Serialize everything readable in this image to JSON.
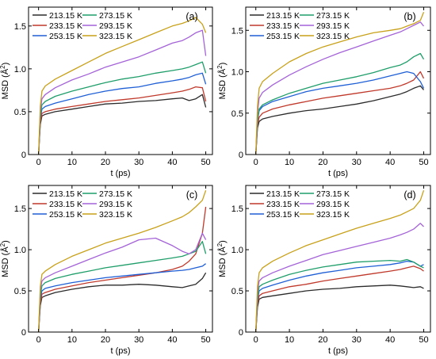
{
  "chart_data": [
    {
      "type": "line",
      "panel_label": "(a)",
      "xlabel": "t (ps)",
      "ylabel": "MSD (Å²)",
      "ylabel_text": "MSD (Å",
      "ylabel_sup": "2",
      "ylabel_close": ")",
      "xlim": [
        -3,
        52
      ],
      "ylim": [
        0,
        1.72
      ],
      "xticks": [
        0,
        10,
        20,
        30,
        40,
        50
      ],
      "xtick_labels": [
        "0",
        "10",
        "20",
        "30",
        "40",
        "50"
      ],
      "yticks": [
        0.0,
        0.5,
        1.0,
        1.5
      ],
      "ytick_labels": [
        "0",
        "0.5",
        "1.0",
        "1.5"
      ],
      "series": [
        {
          "name": "213.15 K",
          "color": "#2b2b2b",
          "x": [
            0,
            0.5,
            1,
            2,
            5,
            10,
            15,
            20,
            25,
            30,
            35,
            40,
            43,
            45,
            47,
            49,
            50
          ],
          "y": [
            0,
            0.35,
            0.45,
            0.47,
            0.5,
            0.53,
            0.56,
            0.59,
            0.6,
            0.62,
            0.63,
            0.65,
            0.66,
            0.63,
            0.65,
            0.7,
            0.55
          ]
        },
        {
          "name": "233.15 K",
          "color": "#c0392b",
          "x": [
            0,
            0.5,
            1,
            2,
            5,
            10,
            15,
            20,
            25,
            30,
            35,
            40,
            43,
            45,
            47,
            49,
            50
          ],
          "y": [
            0,
            0.38,
            0.48,
            0.5,
            0.53,
            0.56,
            0.59,
            0.62,
            0.64,
            0.66,
            0.69,
            0.72,
            0.74,
            0.76,
            0.79,
            0.78,
            0.62
          ]
        },
        {
          "name": "253.15 K",
          "color": "#1f5fd6",
          "x": [
            0,
            0.5,
            1,
            2,
            5,
            10,
            15,
            20,
            25,
            30,
            35,
            40,
            43,
            45,
            47,
            49,
            50
          ],
          "y": [
            0,
            0.42,
            0.53,
            0.56,
            0.6,
            0.65,
            0.7,
            0.74,
            0.77,
            0.79,
            0.83,
            0.86,
            0.88,
            0.9,
            0.93,
            0.95,
            0.82
          ]
        },
        {
          "name": "273.15 K",
          "color": "#1f9e6a",
          "x": [
            0,
            0.5,
            1,
            2,
            5,
            10,
            15,
            20,
            25,
            30,
            35,
            40,
            43,
            45,
            47,
            49,
            50
          ],
          "y": [
            0,
            0.45,
            0.58,
            0.62,
            0.68,
            0.74,
            0.79,
            0.84,
            0.88,
            0.91,
            0.95,
            0.98,
            1.0,
            1.02,
            1.05,
            1.08,
            0.95
          ]
        },
        {
          "name": "293.15 K",
          "color": "#a463d8",
          "x": [
            0,
            0.5,
            1,
            2,
            5,
            10,
            15,
            20,
            25,
            30,
            35,
            40,
            43,
            45,
            47,
            49,
            50
          ],
          "y": [
            0,
            0.5,
            0.65,
            0.7,
            0.78,
            0.87,
            0.94,
            1.02,
            1.08,
            1.14,
            1.22,
            1.3,
            1.33,
            1.37,
            1.42,
            1.45,
            1.15
          ]
        },
        {
          "name": "323.15 K",
          "color": "#c8a11a",
          "x": [
            0,
            0.5,
            1,
            2,
            5,
            10,
            15,
            20,
            25,
            30,
            35,
            40,
            43,
            45,
            47,
            49,
            50
          ],
          "y": [
            0,
            0.56,
            0.74,
            0.8,
            0.88,
            0.98,
            1.08,
            1.18,
            1.26,
            1.34,
            1.42,
            1.5,
            1.53,
            1.56,
            1.6,
            1.52,
            1.42
          ]
        }
      ]
    },
    {
      "type": "line",
      "panel_label": "(b)",
      "xlabel": "t (ps)",
      "ylabel": "MSD (Å²)",
      "ylabel_text": "MSD (Å",
      "ylabel_sup": "2",
      "ylabel_close": ")",
      "xlim": [
        -3,
        52
      ],
      "ylim": [
        0,
        1.78
      ],
      "xticks": [
        0,
        10,
        20,
        30,
        40,
        50
      ],
      "xtick_labels": [
        "0",
        "10",
        "20",
        "30",
        "40",
        "50"
      ],
      "yticks": [
        0.0,
        0.5,
        1.0,
        1.5
      ],
      "ytick_labels": [
        "0",
        "0.5",
        "1.0",
        "1.5"
      ],
      "series": [
        {
          "name": "213.15 K",
          "color": "#2b2b2b",
          "x": [
            0,
            0.5,
            1,
            2,
            5,
            10,
            15,
            20,
            25,
            30,
            35,
            40,
            43,
            45,
            47,
            49,
            50
          ],
          "y": [
            0,
            0.32,
            0.4,
            0.43,
            0.46,
            0.5,
            0.53,
            0.55,
            0.58,
            0.61,
            0.65,
            0.7,
            0.73,
            0.76,
            0.8,
            0.83,
            0.78
          ]
        },
        {
          "name": "233.15 K",
          "color": "#c0392b",
          "x": [
            0,
            0.5,
            1,
            2,
            5,
            10,
            15,
            20,
            25,
            30,
            35,
            40,
            43,
            45,
            47,
            49,
            50
          ],
          "y": [
            0,
            0.36,
            0.45,
            0.5,
            0.55,
            0.6,
            0.64,
            0.68,
            0.71,
            0.74,
            0.77,
            0.8,
            0.83,
            0.86,
            0.9,
            1.0,
            0.92
          ]
        },
        {
          "name": "253.15 K",
          "color": "#1f5fd6",
          "x": [
            0,
            0.5,
            1,
            2,
            5,
            10,
            15,
            20,
            25,
            30,
            35,
            40,
            43,
            45,
            47,
            49,
            50
          ],
          "y": [
            0,
            0.4,
            0.53,
            0.58,
            0.64,
            0.7,
            0.76,
            0.8,
            0.83,
            0.86,
            0.9,
            0.95,
            0.98,
            1.0,
            0.98,
            0.88,
            0.8
          ]
        },
        {
          "name": "273.15 K",
          "color": "#1f9e6a",
          "x": [
            0,
            0.5,
            1,
            2,
            5,
            10,
            15,
            20,
            25,
            30,
            35,
            40,
            43,
            45,
            47,
            49,
            50
          ],
          "y": [
            0,
            0.42,
            0.55,
            0.6,
            0.66,
            0.74,
            0.8,
            0.86,
            0.9,
            0.94,
            0.99,
            1.05,
            1.08,
            1.12,
            1.18,
            1.22,
            1.15
          ]
        },
        {
          "name": "293.15 K",
          "color": "#a463d8",
          "x": [
            0,
            0.5,
            1,
            2,
            5,
            10,
            15,
            20,
            25,
            30,
            35,
            40,
            43,
            45,
            47,
            49,
            50
          ],
          "y": [
            0,
            0.5,
            0.68,
            0.75,
            0.84,
            0.96,
            1.06,
            1.15,
            1.23,
            1.3,
            1.37,
            1.44,
            1.48,
            1.52,
            1.56,
            1.6,
            1.55
          ]
        },
        {
          "name": "323.15 K",
          "color": "#c8a11a",
          "x": [
            0,
            0.5,
            1,
            2,
            5,
            10,
            15,
            20,
            25,
            30,
            35,
            40,
            43,
            45,
            47,
            49,
            50
          ],
          "y": [
            0,
            0.58,
            0.8,
            0.88,
            0.98,
            1.12,
            1.22,
            1.3,
            1.36,
            1.42,
            1.47,
            1.5,
            1.52,
            1.55,
            1.58,
            1.62,
            1.72
          ]
        }
      ]
    },
    {
      "type": "line",
      "panel_label": "(c)",
      "xlabel": "t (ps)",
      "ylabel": "MSD (Å²)",
      "ylabel_text": "MSD (Å",
      "ylabel_sup": "2",
      "ylabel_close": ")",
      "xlim": [
        -3,
        52
      ],
      "ylim": [
        0,
        1.78
      ],
      "xticks": [
        0,
        10,
        20,
        30,
        40,
        50
      ],
      "xtick_labels": [
        "0",
        "10",
        "20",
        "30",
        "40",
        "50"
      ],
      "yticks": [
        0.0,
        0.5,
        1.0,
        1.5
      ],
      "ytick_labels": [
        "0",
        "0.5",
        "1.0",
        "1.5"
      ],
      "series": [
        {
          "name": "213.15 K",
          "color": "#2b2b2b",
          "x": [
            0,
            0.5,
            1,
            2,
            5,
            10,
            15,
            20,
            25,
            30,
            35,
            40,
            43,
            45,
            47,
            49,
            50
          ],
          "y": [
            0,
            0.32,
            0.42,
            0.44,
            0.48,
            0.52,
            0.55,
            0.57,
            0.57,
            0.58,
            0.57,
            0.55,
            0.54,
            0.56,
            0.58,
            0.65,
            0.72
          ]
        },
        {
          "name": "233.15 K",
          "color": "#c0392b",
          "x": [
            0,
            0.5,
            1,
            2,
            5,
            10,
            15,
            20,
            25,
            30,
            35,
            40,
            43,
            45,
            47,
            49,
            50
          ],
          "y": [
            0,
            0.35,
            0.46,
            0.48,
            0.52,
            0.56,
            0.6,
            0.63,
            0.66,
            0.69,
            0.72,
            0.76,
            0.8,
            0.86,
            0.95,
            1.2,
            1.52
          ]
        },
        {
          "name": "253.15 K",
          "color": "#1f5fd6",
          "x": [
            0,
            0.5,
            1,
            2,
            5,
            10,
            15,
            20,
            25,
            30,
            35,
            40,
            43,
            45,
            47,
            49,
            50
          ],
          "y": [
            0,
            0.4,
            0.5,
            0.53,
            0.56,
            0.6,
            0.63,
            0.66,
            0.68,
            0.7,
            0.72,
            0.74,
            0.75,
            0.76,
            0.78,
            0.8,
            0.83
          ]
        },
        {
          "name": "273.15 K",
          "color": "#1f9e6a",
          "x": [
            0,
            0.5,
            1,
            2,
            5,
            10,
            15,
            20,
            25,
            30,
            35,
            40,
            43,
            45,
            47,
            49,
            50
          ],
          "y": [
            0,
            0.44,
            0.56,
            0.6,
            0.65,
            0.7,
            0.74,
            0.78,
            0.81,
            0.84,
            0.87,
            0.9,
            0.92,
            0.95,
            0.98,
            1.1,
            0.95
          ]
        },
        {
          "name": "293.15 K",
          "color": "#a463d8",
          "x": [
            0,
            0.5,
            1,
            2,
            5,
            10,
            15,
            20,
            25,
            30,
            35,
            40,
            43,
            45,
            47,
            49,
            50
          ],
          "y": [
            0,
            0.5,
            0.62,
            0.66,
            0.72,
            0.8,
            0.88,
            0.96,
            1.03,
            1.12,
            1.14,
            1.05,
            0.98,
            0.95,
            1.0,
            1.2,
            1.12
          ]
        },
        {
          "name": "323.15 K",
          "color": "#c8a11a",
          "x": [
            0,
            0.5,
            1,
            2,
            5,
            10,
            15,
            20,
            25,
            30,
            35,
            40,
            43,
            45,
            47,
            49,
            50
          ],
          "y": [
            0,
            0.55,
            0.7,
            0.74,
            0.82,
            0.92,
            1.0,
            1.08,
            1.14,
            1.2,
            1.27,
            1.35,
            1.4,
            1.45,
            1.52,
            1.6,
            1.72
          ]
        }
      ]
    },
    {
      "type": "line",
      "panel_label": "(d)",
      "xlabel": "t (ps)",
      "ylabel": "MSD (Å²)",
      "ylabel_text": "MSD (Å",
      "ylabel_sup": "2",
      "ylabel_close": ")",
      "xlim": [
        -3,
        52
      ],
      "ylim": [
        0,
        1.78
      ],
      "xticks": [
        0,
        10,
        20,
        30,
        40,
        50
      ],
      "xtick_labels": [
        "0",
        "10",
        "20",
        "30",
        "40",
        "50"
      ],
      "yticks": [
        0.0,
        0.5,
        1.0,
        1.5
      ],
      "ytick_labels": [
        "0",
        "0.5",
        "1.0",
        "1.5"
      ],
      "series": [
        {
          "name": "213.15 K",
          "color": "#2b2b2b",
          "x": [
            0,
            0.5,
            1,
            2,
            5,
            10,
            15,
            20,
            25,
            30,
            35,
            40,
            43,
            45,
            47,
            49,
            50
          ],
          "y": [
            0,
            0.3,
            0.4,
            0.42,
            0.44,
            0.47,
            0.5,
            0.52,
            0.53,
            0.55,
            0.56,
            0.57,
            0.56,
            0.55,
            0.54,
            0.55,
            0.53
          ]
        },
        {
          "name": "233.15 K",
          "color": "#c0392b",
          "x": [
            0,
            0.5,
            1,
            2,
            5,
            10,
            15,
            20,
            25,
            30,
            35,
            40,
            43,
            45,
            47,
            49,
            50
          ],
          "y": [
            0,
            0.34,
            0.44,
            0.47,
            0.5,
            0.55,
            0.58,
            0.62,
            0.65,
            0.68,
            0.71,
            0.74,
            0.76,
            0.78,
            0.8,
            0.77,
            0.74
          ]
        },
        {
          "name": "253.15 K",
          "color": "#1f5fd6",
          "x": [
            0,
            0.5,
            1,
            2,
            5,
            10,
            15,
            20,
            25,
            30,
            35,
            40,
            43,
            45,
            47,
            49,
            50
          ],
          "y": [
            0,
            0.38,
            0.5,
            0.53,
            0.57,
            0.63,
            0.68,
            0.72,
            0.75,
            0.78,
            0.8,
            0.82,
            0.84,
            0.86,
            0.85,
            0.8,
            0.82
          ]
        },
        {
          "name": "273.15 K",
          "color": "#1f9e6a",
          "x": [
            0,
            0.5,
            1,
            2,
            5,
            10,
            15,
            20,
            25,
            30,
            35,
            40,
            43,
            45,
            47,
            49,
            50
          ],
          "y": [
            0,
            0.42,
            0.55,
            0.58,
            0.63,
            0.7,
            0.75,
            0.79,
            0.82,
            0.85,
            0.86,
            0.87,
            0.86,
            0.88,
            0.85,
            0.8,
            0.78
          ]
        },
        {
          "name": "293.15 K",
          "color": "#a463d8",
          "x": [
            0,
            0.5,
            1,
            2,
            5,
            10,
            15,
            20,
            25,
            30,
            35,
            40,
            43,
            45,
            47,
            49,
            50
          ],
          "y": [
            0,
            0.48,
            0.62,
            0.66,
            0.72,
            0.8,
            0.87,
            0.94,
            0.99,
            1.04,
            1.09,
            1.14,
            1.18,
            1.21,
            1.25,
            1.32,
            1.28
          ]
        },
        {
          "name": "323.15 K",
          "color": "#c8a11a",
          "x": [
            0,
            0.5,
            1,
            2,
            5,
            10,
            15,
            20,
            25,
            30,
            35,
            40,
            43,
            45,
            47,
            49,
            50
          ],
          "y": [
            0,
            0.55,
            0.72,
            0.78,
            0.86,
            0.96,
            1.05,
            1.12,
            1.19,
            1.26,
            1.32,
            1.38,
            1.42,
            1.46,
            1.5,
            1.6,
            1.72
          ]
        }
      ]
    }
  ]
}
